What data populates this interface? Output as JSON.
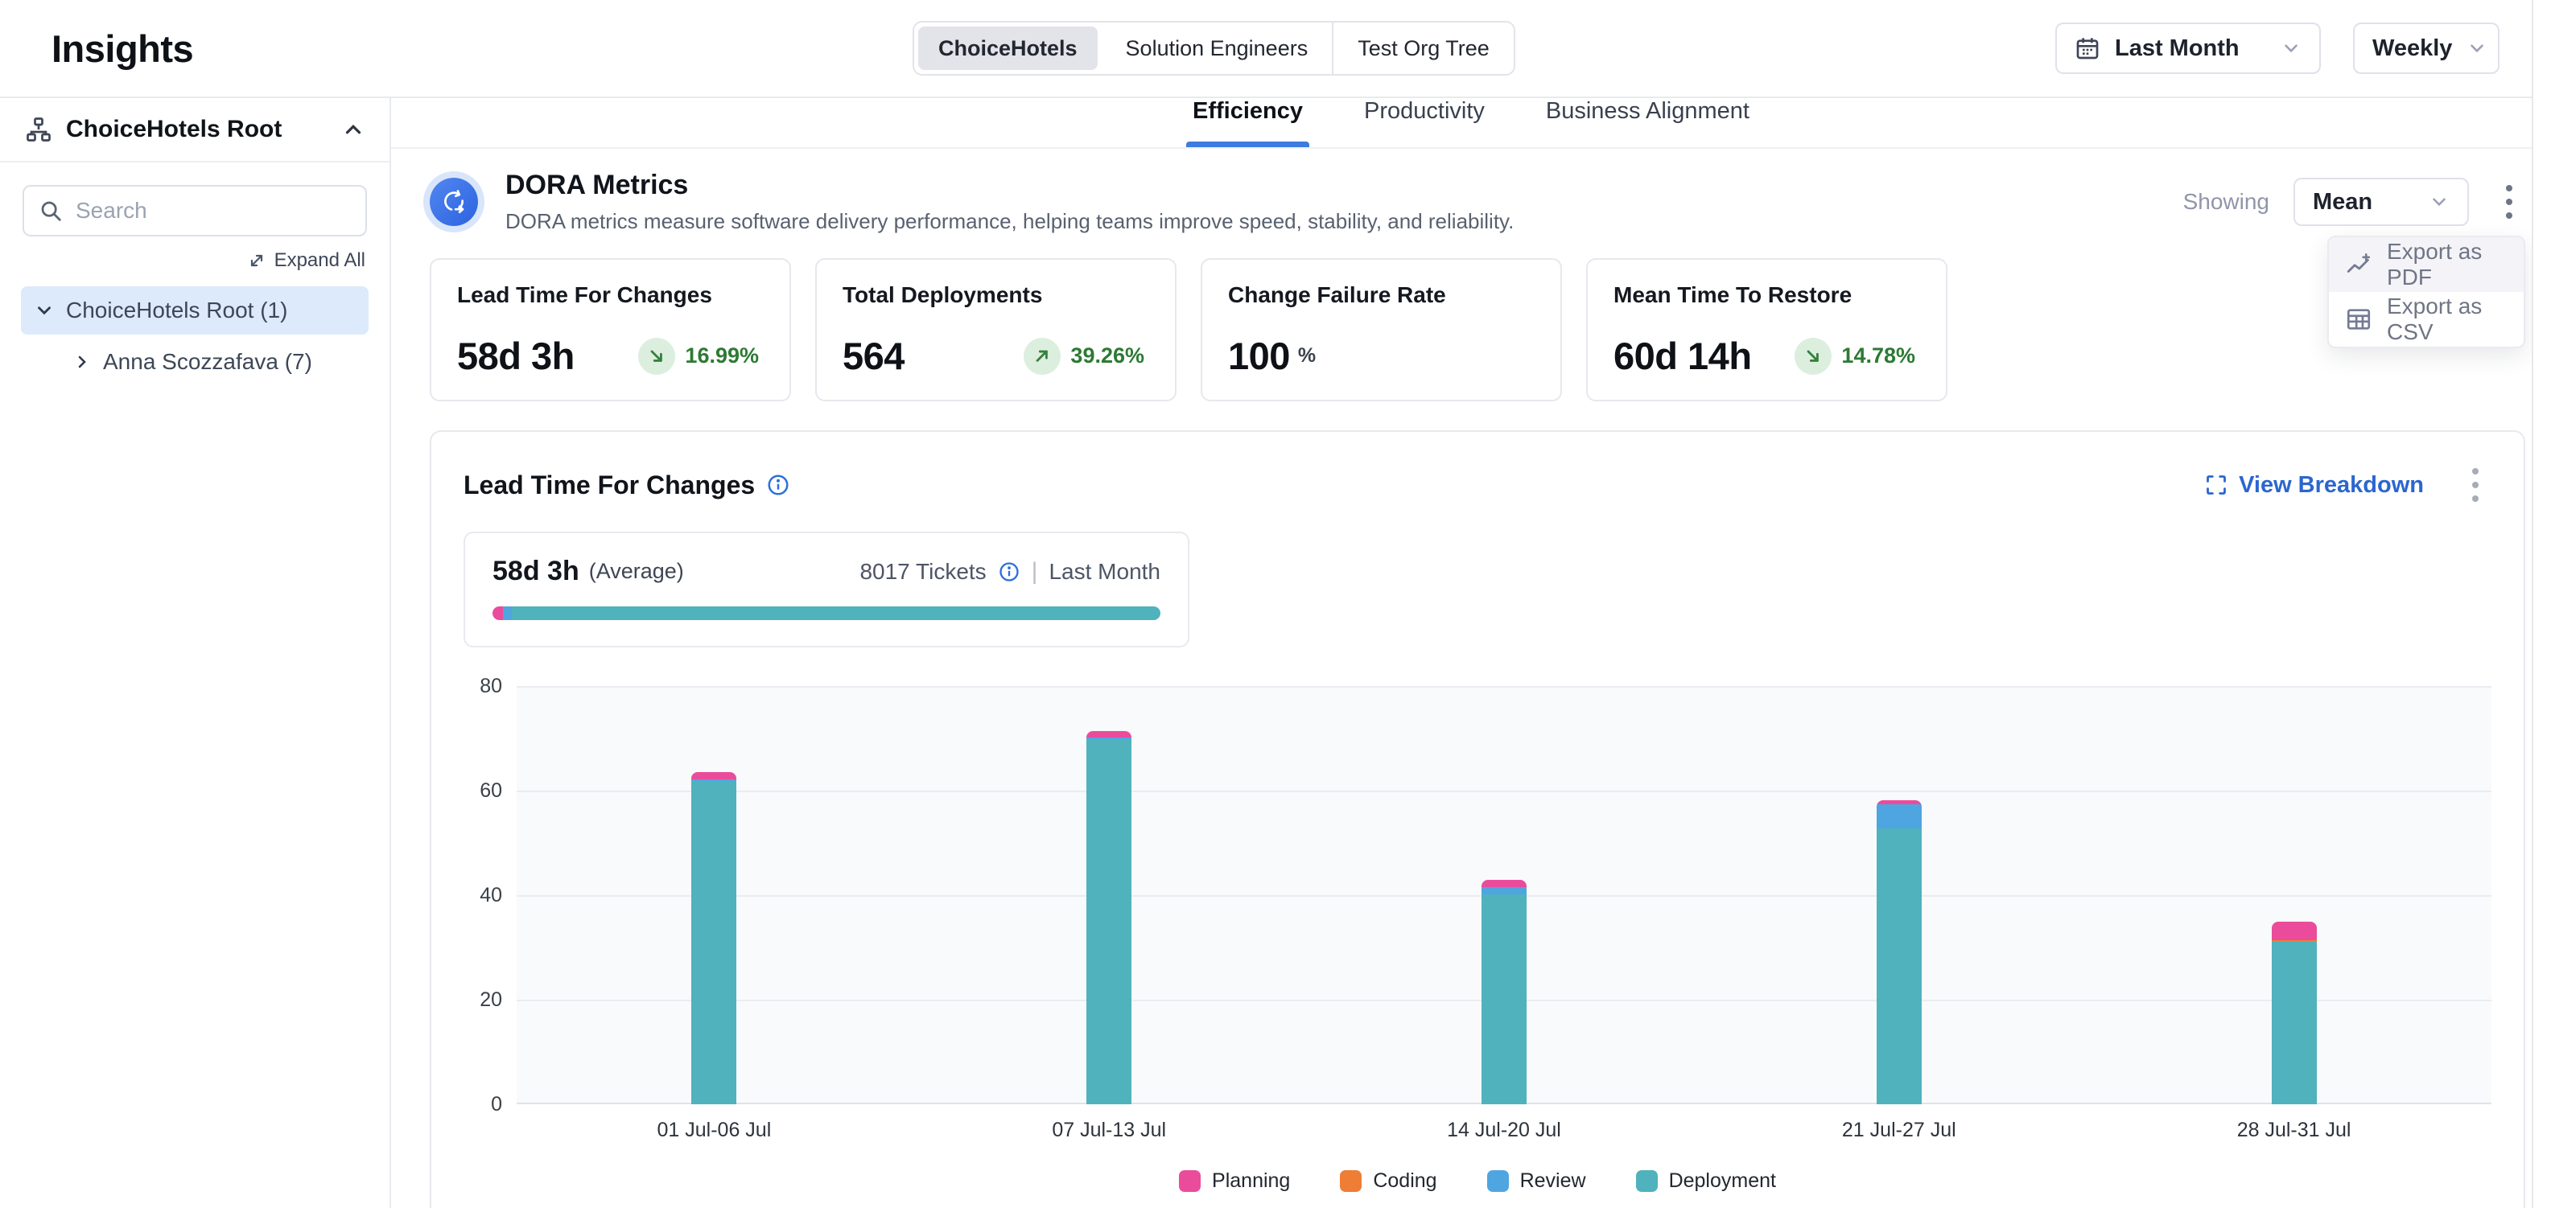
{
  "page": {
    "title": "Insights"
  },
  "header": {
    "org_tabs": [
      {
        "label": "ChoiceHotels",
        "active": true
      },
      {
        "label": "Solution Engineers",
        "active": false
      },
      {
        "label": "Test Org Tree",
        "active": false
      }
    ],
    "date_range": {
      "value": "Last Month"
    },
    "granularity": {
      "value": "Weekly"
    }
  },
  "sidebar": {
    "root_label": "ChoiceHotels Root",
    "search_placeholder": "Search",
    "expand_all_label": "Expand All",
    "tree": [
      {
        "label": "ChoiceHotels Root (1)",
        "level": 0,
        "expanded": true,
        "selected": true
      },
      {
        "label": "Anna Scozzafava (7)",
        "level": 1,
        "expanded": false,
        "selected": false
      }
    ]
  },
  "tabs": [
    {
      "label": "Efficiency",
      "active": true
    },
    {
      "label": "Productivity",
      "active": false
    },
    {
      "label": "Business Alignment",
      "active": false
    }
  ],
  "dora": {
    "title": "DORA Metrics",
    "description": "DORA metrics measure software delivery performance, helping teams improve speed, stability, and reliability.",
    "showing_label": "Showing",
    "showing_value": "Mean",
    "menu": [
      {
        "label": "Export as PDF",
        "icon": "chart-export-icon",
        "highlighted": true
      },
      {
        "label": "Export as CSV",
        "icon": "table-icon",
        "highlighted": false
      }
    ]
  },
  "metric_cards": [
    {
      "title": "Lead Time For Changes",
      "value": "58d 3h",
      "unit": "",
      "delta": "16.99%",
      "direction": "down"
    },
    {
      "title": "Total Deployments",
      "value": "564",
      "unit": "",
      "delta": "39.26%",
      "direction": "up"
    },
    {
      "title": "Change Failure Rate",
      "value": "100",
      "unit": "%",
      "delta": "",
      "direction": ""
    },
    {
      "title": "Mean Time To Restore",
      "value": "60d 14h",
      "unit": "",
      "delta": "14.78%",
      "direction": "down"
    }
  ],
  "chart_section": {
    "title": "Lead Time For Changes",
    "view_breakdown_label": "View Breakdown",
    "summary": {
      "value": "58d 3h",
      "qualifier": "(Average)",
      "tickets": "8017 Tickets",
      "divider": "|",
      "period": "Last Month",
      "bar_segments": [
        {
          "name": "Planning",
          "color": "#EA4C9B",
          "pct": 1.6
        },
        {
          "name": "Review",
          "color": "#4FA5E0",
          "pct": 1.3
        },
        {
          "name": "Deployment",
          "color": "#4FB2BD",
          "pct": 97.1
        }
      ]
    }
  },
  "chart_data": {
    "type": "bar",
    "stacked": true,
    "title": "Lead Time For Changes",
    "categories": [
      "01 Jul-06 Jul",
      "07 Jul-13 Jul",
      "14 Jul-20 Jul",
      "21 Jul-27 Jul",
      "28 Jul-31 Jul"
    ],
    "series": [
      {
        "name": "Planning",
        "color": "#EA4C9B",
        "values": [
          1.3,
          1.2,
          1.4,
          0.8,
          3.5
        ]
      },
      {
        "name": "Coding",
        "color": "#EE7D35",
        "values": [
          0,
          0,
          0,
          0,
          0.3
        ]
      },
      {
        "name": "Review",
        "color": "#4FA5E0",
        "values": [
          0.4,
          0.4,
          1.4,
          4.6,
          0
        ]
      },
      {
        "name": "Deployment",
        "color": "#4FB2BD",
        "values": [
          61.8,
          69.8,
          40.1,
          52.8,
          31.1
        ]
      }
    ],
    "totals": [
      63.5,
      71.4,
      42.9,
      58.2,
      34.9
    ],
    "xlabel": "",
    "ylabel": "",
    "ylim": [
      0,
      80
    ],
    "yticks": [
      0,
      20,
      40,
      60,
      80
    ],
    "grid": true,
    "legend_position": "bottom",
    "stack_order_bottom_to_top": [
      "Deployment",
      "Review",
      "Coding",
      "Planning"
    ]
  },
  "colors": {
    "accent_blue": "#3E7BE0",
    "link_blue": "#2B66CF",
    "positive_green": "#2C7A33",
    "badge_green_bg": "#DCEFDF",
    "selected_tree_bg": "#DCEAFB",
    "plot_bg": "#F8FAFC"
  }
}
